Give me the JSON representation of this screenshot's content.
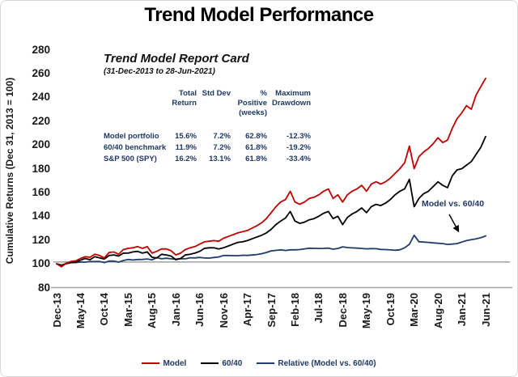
{
  "title": "Trend Model Performance",
  "y_axis_label": "Cumulative Returns (Dec 31, 2013 = 100)",
  "report_card": {
    "title": "Trend Model Report Card",
    "subtitle": "(31-Dec-2013 to 28-Jun-2021)",
    "headers": [
      {
        "line1": "Total",
        "line2": "Return"
      },
      {
        "line1": "",
        "line2": "Std Dev"
      },
      {
        "line1": "% Positive",
        "line2": "(weeks)"
      },
      {
        "line1": "Maximum",
        "line2": "Drawdown"
      }
    ],
    "rows": [
      {
        "label": "Model portfolio",
        "values": [
          "15.6%",
          "7.2%",
          "62.8%",
          "-12.3%"
        ]
      },
      {
        "label": "60/40 benchmark",
        "values": [
          "11.9%",
          "7.2%",
          "61.8%",
          "-19.2%"
        ]
      },
      {
        "label": "S&P 500 (SPY)",
        "values": [
          "16.2%",
          "13.1%",
          "61.8%",
          "-33.4%"
        ]
      }
    ]
  },
  "annotation": {
    "text": "Model vs. 60/40"
  },
  "legend": [
    {
      "label": "Model",
      "color": "#c00000"
    },
    {
      "label": "60/40",
      "color": "#000000"
    },
    {
      "label": "Relative (Model vs. 60/40)",
      "color": "#1f3d68"
    }
  ],
  "colors": {
    "model": "#c00000",
    "benchmark": "#000000",
    "relative": "#1f3d68",
    "baseline": "#8c8c8c",
    "axis": "#a6a6a6",
    "card_text": "#1f3864"
  },
  "chart_data": {
    "type": "line",
    "title": "Trend Model Performance",
    "xlabel": "",
    "ylabel": "Cumulative Returns (Dec 31, 2013 = 100)",
    "ylim": [
      80,
      280
    ],
    "y_ticks": [
      80,
      100,
      120,
      140,
      160,
      180,
      200,
      220,
      240,
      260,
      280
    ],
    "x_tick_labels": [
      "Dec-13",
      "May-14",
      "Oct-14",
      "Mar-15",
      "Aug-15",
      "Jan-16",
      "Jun-16",
      "Nov-16",
      "Apr-17",
      "Sep-17",
      "Feb-18",
      "Jul-18",
      "Dec-18",
      "May-19",
      "Oct-19",
      "Mar-20",
      "Aug-20",
      "Jan-21",
      "Jun-21"
    ],
    "x_unit": "months from Dec-2013 to Jun-2021, one value per month, every 5th month labeled",
    "grid": false,
    "legend_position": "bottom",
    "baseline_reference_value": 101.5,
    "series": [
      {
        "name": "Model",
        "color": "#c00000",
        "values": [
          100,
          97.5,
          100.5,
          102,
          102.5,
          104.5,
          106,
          105.5,
          108,
          107,
          105,
          109.5,
          110,
          108,
          112,
          113,
          113.5,
          114.5,
          113,
          114.5,
          109,
          110.5,
          112.5,
          112.5,
          111,
          107.5,
          109,
          112,
          113.5,
          114.5,
          116.5,
          118.5,
          119,
          119.5,
          119,
          121.5,
          123,
          124.5,
          126,
          127,
          128,
          130,
          132,
          134.5,
          138,
          143,
          148,
          152,
          154,
          161,
          152,
          150,
          152,
          155,
          156,
          158,
          161,
          163,
          155,
          158,
          152,
          158,
          161,
          163,
          166,
          161,
          167,
          169,
          167,
          169,
          172,
          176,
          180,
          185,
          199,
          180,
          190,
          194,
          197,
          201,
          206,
          202,
          204,
          214,
          222,
          227,
          233,
          230,
          242,
          249,
          256
        ]
      },
      {
        "name": "60/40",
        "color": "#000000",
        "values": [
          100,
          98.5,
          100.5,
          101,
          101.5,
          103,
          104.5,
          103.5,
          106,
          105,
          104,
          107,
          107.5,
          106.5,
          109,
          109,
          110,
          110.5,
          109,
          110,
          105.5,
          105,
          108,
          107.5,
          106.5,
          103.5,
          104.5,
          107.5,
          108,
          109,
          110.5,
          113,
          113.5,
          113.5,
          112.5,
          113.5,
          115,
          116.5,
          118,
          118.5,
          119.5,
          121,
          122.5,
          124,
          126,
          129,
          133,
          136,
          138.5,
          144,
          136,
          134,
          135,
          137,
          138,
          140,
          142.5,
          144,
          138,
          140,
          133,
          139,
          142,
          144,
          147,
          143,
          148,
          150,
          149,
          151,
          154,
          158,
          161,
          163,
          171,
          148,
          155,
          159,
          161,
          165,
          169,
          166,
          164,
          174,
          179,
          180,
          183,
          186,
          192,
          198,
          207
        ]
      },
      {
        "name": "Relative (Model vs. 60/40)",
        "color": "#1f3d68",
        "values": [
          100,
          99,
          100,
          101,
          101,
          101.5,
          101.4,
          101.9,
          101.9,
          102,
          101,
          102.3,
          102.3,
          101.4,
          102.8,
          103.7,
          103.2,
          103.6,
          103.7,
          104.1,
          103.3,
          105.2,
          104.2,
          104.7,
          104.2,
          103.9,
          104.3,
          104.2,
          105.1,
          105,
          105.4,
          104.9,
          104.8,
          105.3,
          105.8,
          107,
          107,
          106.9,
          106.8,
          107.2,
          107.1,
          107.4,
          107.8,
          108.5,
          109.5,
          110.9,
          111.3,
          111.8,
          111.2,
          111.8,
          111.8,
          112,
          112.6,
          113.1,
          113,
          112.9,
          113,
          113.2,
          112.3,
          112.9,
          114.3,
          113.7,
          113.4,
          113.2,
          112.9,
          112.6,
          112.8,
          112.7,
          112.1,
          112,
          111.7,
          111.4,
          111.8,
          113.5,
          116.4,
          124,
          118.6,
          118.3,
          118,
          117.6,
          117.3,
          117,
          116.3,
          116.6,
          117,
          118.3,
          119.5,
          120.3,
          121,
          122,
          123.5
        ]
      }
    ]
  }
}
